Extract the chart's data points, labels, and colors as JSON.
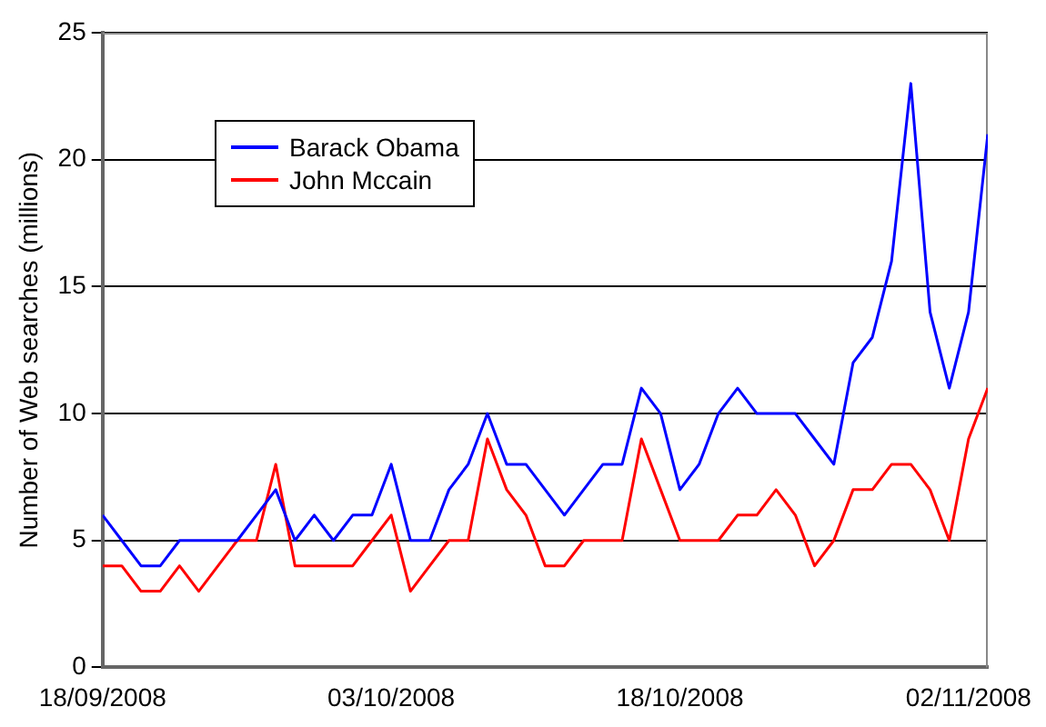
{
  "chart_data": {
    "type": "line",
    "ylabel": "Number of Web searches (millions)",
    "x": [
      "2008-09-18",
      "2008-09-19",
      "2008-09-20",
      "2008-09-21",
      "2008-09-22",
      "2008-09-23",
      "2008-09-24",
      "2008-09-25",
      "2008-09-26",
      "2008-09-27",
      "2008-09-28",
      "2008-09-29",
      "2008-09-30",
      "2008-10-01",
      "2008-10-02",
      "2008-10-03",
      "2008-10-04",
      "2008-10-05",
      "2008-10-06",
      "2008-10-07",
      "2008-10-08",
      "2008-10-09",
      "2008-10-10",
      "2008-10-11",
      "2008-10-12",
      "2008-10-13",
      "2008-10-14",
      "2008-10-15",
      "2008-10-16",
      "2008-10-17",
      "2008-10-18",
      "2008-10-19",
      "2008-10-20",
      "2008-10-21",
      "2008-10-22",
      "2008-10-23",
      "2008-10-24",
      "2008-10-25",
      "2008-10-26",
      "2008-10-27",
      "2008-10-28",
      "2008-10-29",
      "2008-10-30",
      "2008-10-31",
      "2008-11-01",
      "2008-11-02",
      "2008-11-03"
    ],
    "series": [
      {
        "name": "Barack Obama",
        "color": "#0000ff",
        "values": [
          6,
          5,
          4,
          4,
          5,
          5,
          5,
          5,
          6,
          7,
          5,
          6,
          5,
          6,
          6,
          8,
          5,
          5,
          7,
          8,
          10,
          8,
          8,
          7,
          6,
          7,
          8,
          8,
          11,
          10,
          7,
          8,
          10,
          11,
          10,
          10,
          10,
          9,
          8,
          12,
          13,
          16,
          23,
          14,
          11,
          14,
          21
        ]
      },
      {
        "name": "John Mccain",
        "color": "#ff0000",
        "values": [
          4,
          4,
          3,
          3,
          4,
          3,
          4,
          5,
          5,
          8,
          4,
          4,
          4,
          4,
          5,
          6,
          3,
          4,
          5,
          5,
          9,
          7,
          6,
          4,
          4,
          5,
          5,
          5,
          9,
          7,
          5,
          5,
          5,
          6,
          6,
          7,
          6,
          4,
          5,
          7,
          7,
          8,
          8,
          7,
          5,
          9,
          11
        ]
      }
    ],
    "xlim": [
      "2008-09-18",
      "2008-11-03"
    ],
    "xticks": [
      {
        "value": "2008-09-18",
        "label": "18/09/2008"
      },
      {
        "value": "2008-10-03",
        "label": "03/10/2008"
      },
      {
        "value": "2008-10-18",
        "label": "18/10/2008"
      },
      {
        "value": "2008-11-02",
        "label": "02/11/2008"
      }
    ],
    "ylim": [
      0,
      25
    ],
    "yticks": [
      0,
      5,
      10,
      15,
      20,
      25
    ],
    "grid": "y",
    "legend": "top left",
    "marker": "none",
    "line_style": "solid"
  }
}
